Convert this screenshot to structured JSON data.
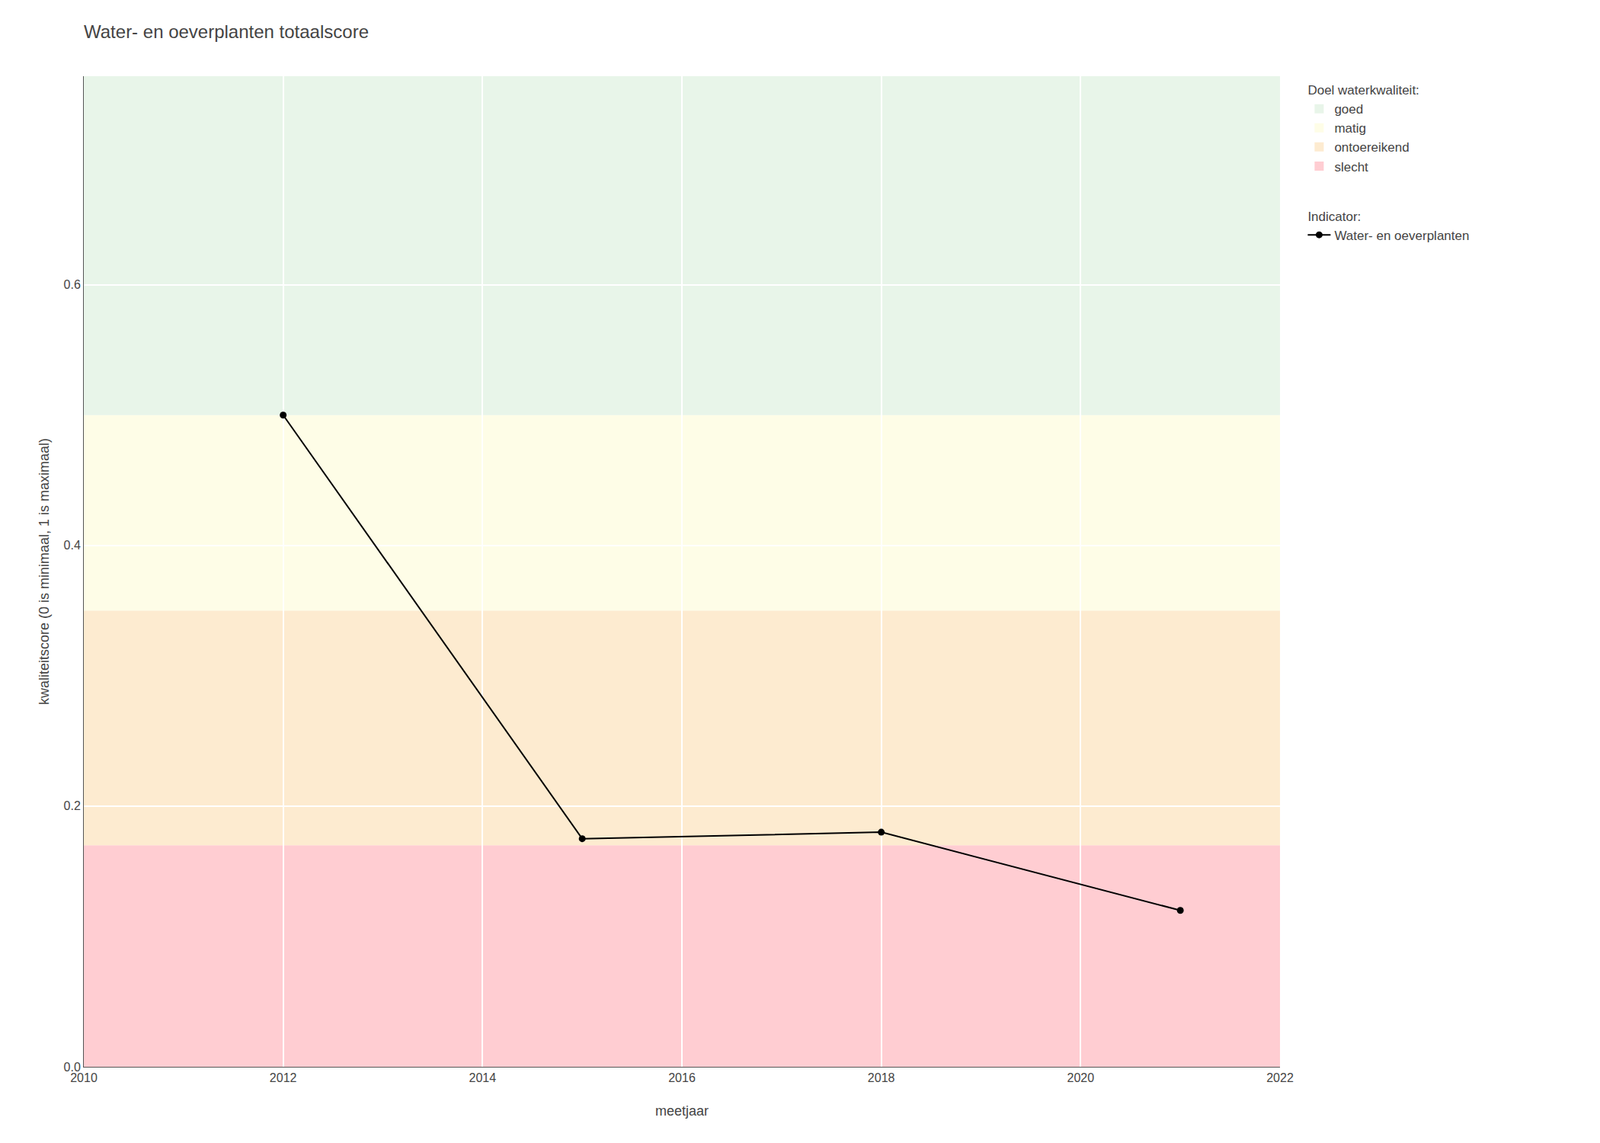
{
  "chart_data": {
    "type": "line",
    "title": "Water- en oeverplanten totaalscore",
    "x_label": "meetjaar",
    "y_label": "kwaliteitscore (0 is minimaal, 1 is maximaal)",
    "x": [
      2012,
      2015,
      2018,
      2021
    ],
    "series": [
      {
        "name": "Water- en oeverplanten",
        "legend_title": "Indicator:",
        "color": "#000000",
        "marker": "circle",
        "line_style": "solid",
        "values": [
          0.5,
          0.175,
          0.18,
          0.12
        ]
      }
    ],
    "bands_title": "Doel waterkwaliteit:",
    "bands": [
      {
        "name": "slecht",
        "ymin": 0.0,
        "ymax": 0.17,
        "color": "#FFCDD2"
      },
      {
        "name": "ontoereikend",
        "ymin": 0.17,
        "ymax": 0.35,
        "color": "#FDEBD0"
      },
      {
        "name": "matig",
        "ymin": 0.35,
        "ymax": 0.5,
        "color": "#FEFDE7"
      },
      {
        "name": "goed",
        "ymin": 0.5,
        "ymax": 0.76,
        "color": "#E8F5E9"
      }
    ],
    "xlim": [
      2010,
      2022
    ],
    "ylim": [
      0.0,
      0.76
    ],
    "xticks": [
      2010,
      2012,
      2014,
      2016,
      2018,
      2020,
      2022
    ],
    "yticks": [
      {
        "value": 0.0,
        "label": "0.0"
      },
      0.2,
      0.4,
      0.6
    ],
    "grid": true,
    "legend": "right"
  }
}
